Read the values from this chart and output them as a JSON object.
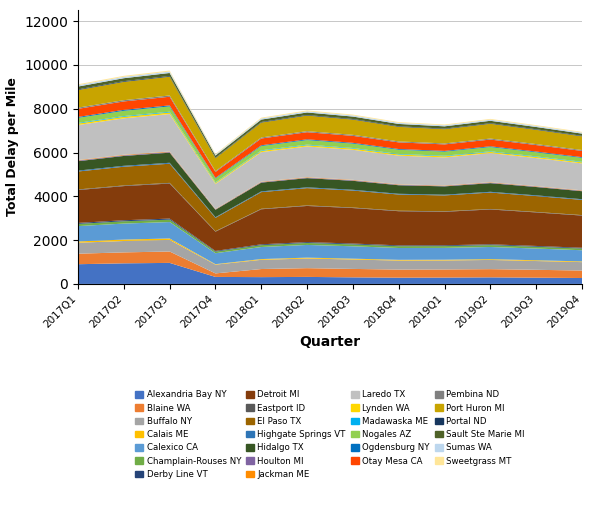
{
  "quarters": [
    "2017Q1",
    "2017Q2",
    "2017Q3",
    "2017Q4",
    "2018Q1",
    "2018Q2",
    "2018Q3",
    "2018Q4",
    "2019Q1",
    "2019Q2",
    "2019Q3",
    "2019Q4"
  ],
  "series_order": [
    "Alexandria Bay NY",
    "Blaine WA",
    "Buffalo NY",
    "Calais ME",
    "Calexico CA",
    "Champlain-Rouses NY",
    "Derby Line VT",
    "Detroit MI",
    "Eastport ID",
    "El Paso TX",
    "Highgate Springs VT",
    "Hidalgo TX",
    "Houlton MI",
    "Jackman ME",
    "Laredo TX",
    "Lynden WA",
    "Madawaska ME",
    "Nogales AZ",
    "Ogdensburg NY",
    "Otay Mesa CA",
    "Pembina ND",
    "Port Huron MI",
    "Portal ND",
    "Sault Ste Marie MI",
    "Sumas WA",
    "Sweetgrass MT"
  ],
  "series": {
    "Alexandria Bay NY": {
      "color": "#4472C4",
      "values": [
        900,
        940,
        960,
        320,
        310,
        320,
        300,
        285,
        290,
        300,
        285,
        270
      ]
    },
    "Blaine WA": {
      "color": "#ED7D31",
      "values": [
        480,
        500,
        520,
        160,
        370,
        400,
        385,
        370,
        370,
        375,
        360,
        340
      ]
    },
    "Buffalo NY": {
      "color": "#A5A5A5",
      "values": [
        500,
        520,
        530,
        400,
        420,
        440,
        430,
        410,
        410,
        420,
        400,
        385
      ]
    },
    "Calais ME": {
      "color": "#FFC000",
      "values": [
        60,
        65,
        65,
        22,
        35,
        40,
        38,
        35,
        35,
        36,
        35,
        33
      ]
    },
    "Calexico CA": {
      "color": "#5B9BD5",
      "values": [
        700,
        730,
        750,
        500,
        550,
        580,
        565,
        540,
        540,
        555,
        535,
        510
      ]
    },
    "Champlain-Rouses NY": {
      "color": "#70AD47",
      "values": [
        100,
        105,
        110,
        72,
        85,
        90,
        87,
        83,
        82,
        85,
        82,
        78
      ]
    },
    "Derby Line VT": {
      "color": "#264478",
      "values": [
        45,
        47,
        48,
        32,
        38,
        40,
        39,
        37,
        37,
        38,
        37,
        35
      ]
    },
    "Detroit MI": {
      "color": "#843C0C",
      "values": [
        1500,
        1560,
        1600,
        880,
        1600,
        1650,
        1620,
        1560,
        1530,
        1590,
        1530,
        1470
      ]
    },
    "Eastport ID": {
      "color": "#595959",
      "values": [
        28,
        29,
        30,
        20,
        23,
        24,
        24,
        22,
        22,
        23,
        22,
        21
      ]
    },
    "El Paso TX": {
      "color": "#9C6500",
      "values": [
        820,
        855,
        875,
        610,
        760,
        790,
        775,
        740,
        725,
        750,
        725,
        695
      ]
    },
    "Highgate Springs VT": {
      "color": "#2E75B6",
      "values": [
        40,
        42,
        43,
        29,
        34,
        36,
        35,
        33,
        33,
        34,
        33,
        31
      ]
    },
    "Hidalgo TX": {
      "color": "#375623",
      "values": [
        430,
        450,
        460,
        340,
        400,
        420,
        410,
        390,
        380,
        395,
        380,
        365
      ]
    },
    "Houlton MI": {
      "color": "#8064A2",
      "values": [
        30,
        31,
        32,
        21,
        25,
        26,
        26,
        24,
        24,
        25,
        24,
        23
      ]
    },
    "Jackman ME": {
      "color": "#FF8C00",
      "values": [
        22,
        23,
        24,
        15,
        18,
        19,
        19,
        17,
        17,
        18,
        17,
        17
      ]
    },
    "Laredo TX": {
      "color": "#C0C0C0",
      "values": [
        1600,
        1665,
        1710,
        1150,
        1350,
        1400,
        1370,
        1310,
        1280,
        1330,
        1280,
        1230
      ]
    },
    "Lynden WA": {
      "color": "#FFD700",
      "values": [
        65,
        68,
        70,
        47,
        55,
        57,
        56,
        53,
        52,
        54,
        52,
        50
      ]
    },
    "Madawaska ME": {
      "color": "#00B0F0",
      "values": [
        32,
        33,
        34,
        23,
        27,
        28,
        27,
        26,
        26,
        27,
        26,
        25
      ]
    },
    "Nogales AZ": {
      "color": "#92D050",
      "values": [
        230,
        240,
        245,
        170,
        195,
        205,
        200,
        190,
        186,
        193,
        186,
        178
      ]
    },
    "Ogdensburg NY": {
      "color": "#0070C0",
      "values": [
        42,
        44,
        45,
        30,
        35,
        37,
        36,
        34,
        34,
        35,
        34,
        32
      ]
    },
    "Otay Mesa CA": {
      "color": "#FF4500",
      "values": [
        370,
        385,
        395,
        270,
        310,
        325,
        318,
        303,
        297,
        308,
        297,
        284
      ]
    },
    "Pembina ND": {
      "color": "#808080",
      "values": [
        55,
        57,
        58,
        40,
        46,
        48,
        47,
        44,
        44,
        46,
        44,
        42
      ]
    },
    "Port Huron MI": {
      "color": "#C8A400",
      "values": [
        800,
        835,
        855,
        590,
        680,
        710,
        695,
        665,
        650,
        675,
        650,
        623
      ]
    },
    "Portal ND": {
      "color": "#17375E",
      "values": [
        32,
        33,
        34,
        23,
        27,
        28,
        27,
        26,
        26,
        27,
        26,
        25
      ]
    },
    "Sault Ste Marie MI": {
      "color": "#4F6228",
      "values": [
        130,
        135,
        138,
        96,
        110,
        115,
        112,
        107,
        105,
        109,
        105,
        100
      ]
    },
    "Sumas WA": {
      "color": "#BDD7EE",
      "values": [
        60,
        63,
        64,
        44,
        51,
        53,
        52,
        49,
        48,
        50,
        48,
        46
      ]
    },
    "Sweetgrass MT": {
      "color": "#FFE699",
      "values": [
        44,
        46,
        47,
        32,
        37,
        39,
        38,
        36,
        36,
        37,
        36,
        34
      ]
    }
  },
  "ylabel": "Total Delay per Mile",
  "xlabel": "Quarter",
  "ylim": [
    0,
    12500
  ],
  "yticks": [
    0,
    2000,
    4000,
    6000,
    8000,
    10000,
    12000
  ],
  "legend_cols": 4
}
